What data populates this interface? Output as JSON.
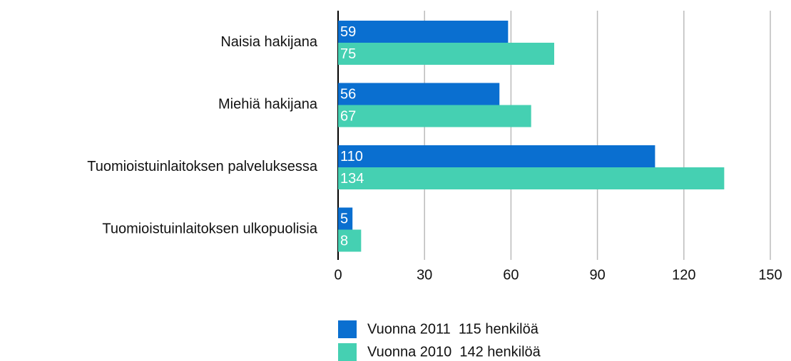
{
  "chart_data": {
    "type": "hbar",
    "categories": [
      "Naisia hakijana",
      "Miehiä hakijana",
      "Tuomioistuinlaitoksen palveluksessa",
      "Tuomioistuinlaitoksen ulkopuolisia"
    ],
    "series": [
      {
        "name": "Vuonna 2011  115 henkilöä",
        "color": "#0a6fd0",
        "values": [
          59,
          56,
          110,
          5
        ]
      },
      {
        "name": "Vuonna 2010  142 henkilöä",
        "color": "#45d0b2",
        "values": [
          75,
          67,
          134,
          8
        ]
      }
    ],
    "xlim": [
      0,
      150
    ],
    "xticks": [
      0,
      30,
      60,
      90,
      120,
      150
    ],
    "grid": true
  }
}
